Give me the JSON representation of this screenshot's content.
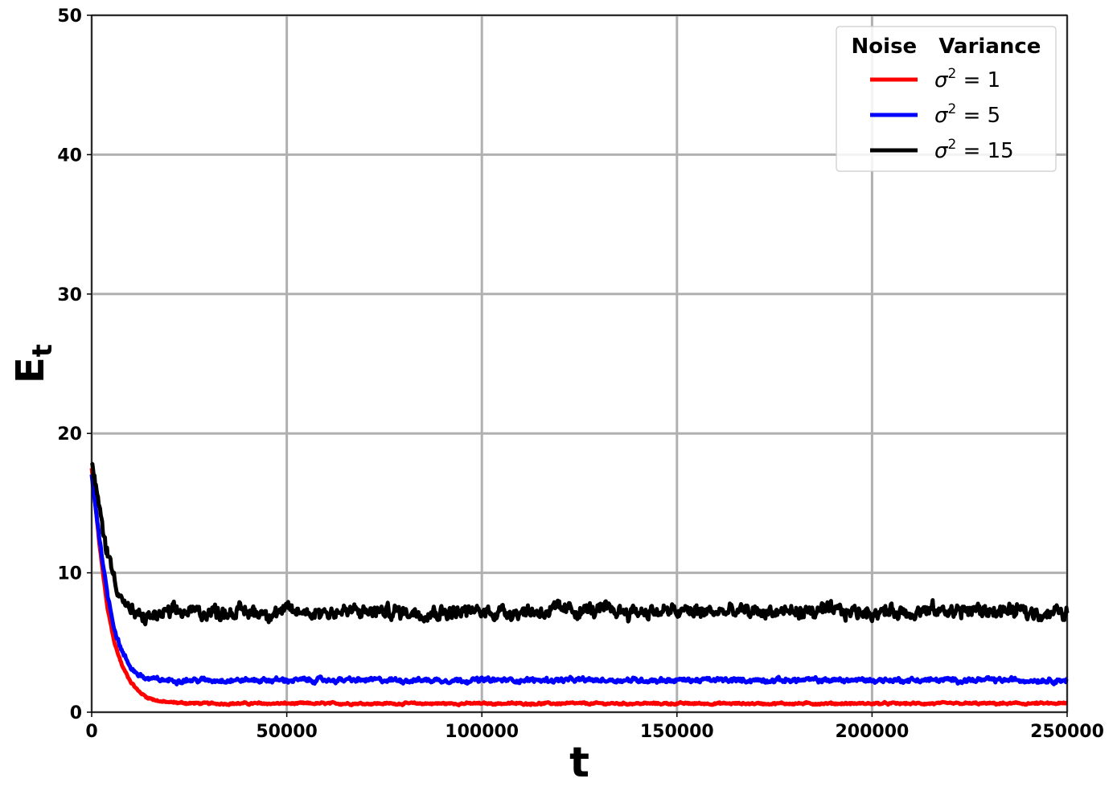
{
  "chart_data": {
    "type": "line",
    "xlabel": "t",
    "ylabel": "E",
    "ylabel_subscript": "t",
    "xlim": [
      0,
      250000
    ],
    "ylim": [
      0,
      50
    ],
    "x_ticks": [
      "0",
      "50000",
      "100000",
      "150000",
      "200000",
      "250000"
    ],
    "y_ticks": [
      "0",
      "10",
      "20",
      "30",
      "40",
      "50"
    ],
    "grid": true,
    "legend": {
      "title": "Noise   Variance",
      "position": "top-right"
    },
    "series": [
      {
        "name": "σ² = 1",
        "name_symbol": "σ",
        "name_sup": "2",
        "name_rest": " = 1",
        "color": "#ff0000",
        "x": [
          0,
          2000,
          4000,
          6000,
          8000,
          10000,
          12000,
          14000,
          16000,
          18000,
          20000,
          25000,
          30000,
          40000,
          50000,
          75000,
          100000,
          125000,
          150000,
          175000,
          200000,
          225000,
          250000
        ],
        "values": [
          17.5,
          12.0,
          7.5,
          4.8,
          3.2,
          2.2,
          1.5,
          1.1,
          0.9,
          0.75,
          0.7,
          0.65,
          0.62,
          0.62,
          0.62,
          0.62,
          0.62,
          0.62,
          0.62,
          0.62,
          0.62,
          0.62,
          0.62
        ],
        "noise": 0.08
      },
      {
        "name": "σ² = 5",
        "name_symbol": "σ",
        "name_sup": "2",
        "name_rest": " = 5",
        "color": "#0000ff",
        "x": [
          0,
          2000,
          4000,
          6000,
          8000,
          10000,
          12000,
          14000,
          16000,
          18000,
          20000,
          25000,
          30000,
          40000,
          50000,
          75000,
          100000,
          125000,
          150000,
          175000,
          200000,
          225000,
          250000
        ],
        "values": [
          17.0,
          12.5,
          8.5,
          5.8,
          4.2,
          3.2,
          2.7,
          2.4,
          2.35,
          2.3,
          2.3,
          2.3,
          2.3,
          2.3,
          2.3,
          2.3,
          2.3,
          2.3,
          2.3,
          2.3,
          2.3,
          2.3,
          2.3
        ],
        "noise": 0.18
      },
      {
        "name": "σ² = 15",
        "name_symbol": "σ",
        "name_sup": "2",
        "name_rest": " = 15",
        "color": "#000000",
        "x": [
          0,
          2000,
          4000,
          6000,
          8000,
          10000,
          12000,
          14000,
          16000,
          18000,
          20000,
          25000,
          30000,
          40000,
          50000,
          75000,
          100000,
          125000,
          150000,
          175000,
          200000,
          225000,
          250000
        ],
        "values": [
          17.8,
          14.5,
          11.5,
          9.5,
          8.0,
          7.2,
          6.8,
          6.8,
          6.9,
          7.0,
          7.1,
          7.2,
          7.2,
          7.2,
          7.2,
          7.2,
          7.2,
          7.3,
          7.2,
          7.2,
          7.2,
          7.3,
          7.1
        ],
        "noise": 0.55
      }
    ]
  },
  "colors": {
    "grid": "#b0b0b0",
    "axis": "#000000",
    "legend_border": "#cccccc"
  }
}
